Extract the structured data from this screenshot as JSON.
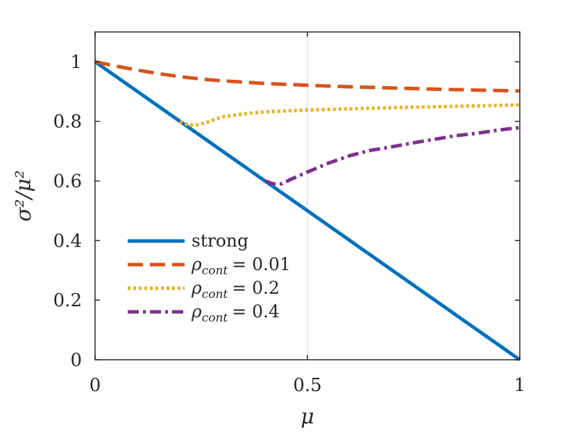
{
  "chart_data": {
    "type": "line",
    "title": "",
    "xlabel": "μ",
    "ylabel": "σ²/μ²",
    "xlim": [
      0,
      1
    ],
    "ylim": [
      0,
      1.1
    ],
    "xticks": [
      0,
      0.5,
      1
    ],
    "xtick_labels": [
      "0",
      "0.5",
      "1"
    ],
    "yticks": [
      0,
      0.2,
      0.4,
      0.6,
      0.8,
      1
    ],
    "ytick_labels": [
      "0",
      "0.2",
      "0.4",
      "0.6",
      "0.8",
      "1"
    ],
    "grid": "x-only",
    "legend_position": "bottom-left",
    "series": [
      {
        "name": "strong",
        "legend_text": "strong",
        "color": "#0072BD",
        "style": "solid",
        "x": [
          0,
          1
        ],
        "y": [
          1,
          0
        ]
      },
      {
        "name": "rho_cont_0.01",
        "legend_symbol": "ρ",
        "legend_sub": "cont",
        "legend_value": "= 0.01",
        "color": "#D95319",
        "style": "dashed",
        "x": [
          0,
          0.05,
          0.1,
          0.15,
          0.2,
          0.25,
          0.3,
          0.4,
          0.5,
          0.6,
          0.7,
          0.8,
          0.9,
          1
        ],
        "y": [
          1,
          0.985,
          0.972,
          0.96,
          0.95,
          0.942,
          0.936,
          0.927,
          0.921,
          0.916,
          0.912,
          0.908,
          0.905,
          0.902
        ]
      },
      {
        "name": "rho_cont_0.2",
        "legend_symbol": "ρ",
        "legend_sub": "cont",
        "legend_value": "= 0.2",
        "color": "#EDB120",
        "style": "dotted",
        "x": [
          0.2,
          0.22,
          0.24,
          0.26,
          0.28,
          0.3,
          0.35,
          0.4,
          0.5,
          0.6,
          0.7,
          0.8,
          0.9,
          1
        ],
        "y": [
          0.8,
          0.787,
          0.788,
          0.795,
          0.806,
          0.815,
          0.825,
          0.832,
          0.838,
          0.842,
          0.846,
          0.849,
          0.852,
          0.855
        ]
      },
      {
        "name": "rho_cont_0.4",
        "legend_symbol": "ρ",
        "legend_sub": "cont",
        "legend_value": "= 0.4",
        "color": "#7E2F8E",
        "style": "dashdot",
        "x": [
          0.4,
          0.42,
          0.44,
          0.46,
          0.5,
          0.55,
          0.6,
          0.65,
          0.7,
          0.75,
          0.8,
          0.85,
          0.9,
          0.95,
          1
        ],
        "y": [
          0.6,
          0.59,
          0.59,
          0.605,
          0.63,
          0.66,
          0.685,
          0.703,
          0.715,
          0.728,
          0.74,
          0.752,
          0.76,
          0.771,
          0.779
        ]
      }
    ]
  }
}
